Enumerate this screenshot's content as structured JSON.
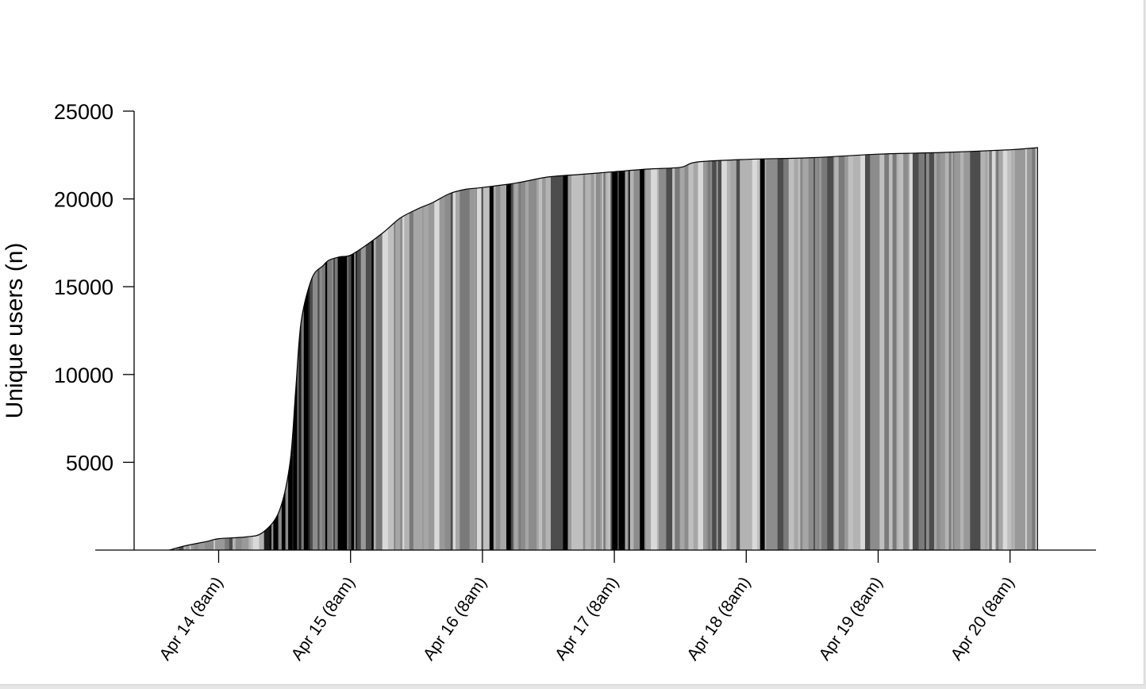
{
  "chart_data": {
    "type": "area",
    "title": "",
    "ylabel": "Unique users (n)",
    "xlabel": "",
    "ylim": [
      0,
      25000
    ],
    "y_ticks": [
      5000,
      10000,
      15000,
      20000,
      25000
    ],
    "y_tick_labels": [
      "5000",
      "10000",
      "15000",
      "20000",
      "25000"
    ],
    "x_ticks": [
      "Apr 14 (8am)",
      "Apr 15 (8am)",
      "Apr 16 (8am)",
      "Apr 17 (8am)",
      "Apr 18 (8am)",
      "Apr 19 (8am)",
      "Apr 20 (8am)"
    ],
    "x_range_days_from_apr14_8am": [
      -0.62,
      6.2
    ],
    "fill_style": "vertical grey stripes (black to light grey)",
    "grid": false,
    "legend": "none",
    "series": [
      {
        "x": [
          "Apr 13 (11pm)",
          "Apr 14 (2am)",
          "Apr 14 (6am)",
          "Apr 14 (8am)",
          "Apr 14 (1pm)",
          "Apr 14 (4pm)",
          "Apr 14 (7pm)",
          "Apr 14 (9pm)",
          "Apr 14 (10pm)",
          "Apr 14 (11pm)",
          "Apr 15 (1am)",
          "Apr 15 (3am)",
          "Apr 15 (4am)",
          "Apr 15 (6am)",
          "Apr 15 (8am)",
          "Apr 15 (11am)",
          "Apr 15 (2pm)",
          "Apr 15 (5pm)",
          "Apr 15 (8pm)",
          "Apr 15 (11pm)",
          "Apr 16 (2am)",
          "Apr 16 (5am)",
          "Apr 16 (8am)",
          "Apr 16 (2pm)",
          "Apr 16 (8pm)",
          "Apr 17 (2am)",
          "Apr 17 (8am)",
          "Apr 17 (2pm)",
          "Apr 17 (8pm)",
          "Apr 17 (11pm)",
          "Apr 18 (8am)",
          "Apr 18 (8pm)",
          "Apr 19 (8am)",
          "Apr 19 (8pm)",
          "Apr 20 (8am)",
          "Apr 20 (1pm)"
        ],
        "y": [
          0,
          250,
          500,
          650,
          750,
          1000,
          2200,
          5000,
          9000,
          13000,
          15500,
          16200,
          16500,
          16700,
          16800,
          17400,
          18100,
          18900,
          19400,
          19800,
          20300,
          20550,
          20650,
          20900,
          21250,
          21400,
          21550,
          21700,
          21800,
          22100,
          22250,
          22350,
          22550,
          22650,
          22800,
          22920
        ]
      }
    ]
  }
}
